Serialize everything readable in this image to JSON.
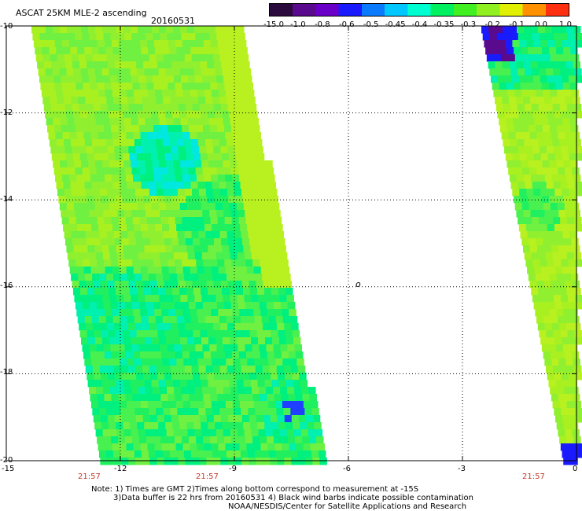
{
  "title": "ASCAT 25KM MLE-2 ascending",
  "date": "20160531",
  "colorbar": {
    "labels": [
      "-15.0",
      "-1.0",
      "-0.8",
      "-0.6",
      "-0.5",
      "-0.45",
      "-0.4",
      "-0.35",
      "-0.3",
      "-0.2",
      "-0.1",
      "0.0",
      "1.0"
    ],
    "colors": [
      "#2b0a3d",
      "#5a0a8c",
      "#6a00c8",
      "#1a1aff",
      "#0a7aff",
      "#00c8ff",
      "#00ffd0",
      "#00f060",
      "#40f020",
      "#90f020",
      "#e0f000",
      "#ff9000",
      "#ff3010"
    ]
  },
  "map": {
    "lat_labels": [
      "-10",
      "-12",
      "-14",
      "-16",
      "-18",
      "-20"
    ],
    "lon_labels": [
      "-15",
      "-12",
      "-9",
      "-6",
      "-3",
      "0"
    ],
    "lat_range": [
      -20,
      -10
    ],
    "lon_range": [
      -15,
      0
    ],
    "time_labels": [
      "21:57",
      "21:57",
      "21:57"
    ],
    "grid": true,
    "grid_style": "dotted",
    "island_label": "o"
  },
  "notes": {
    "line1": "Note: 1) Times are GMT 2)Times along bottom correspond to measurement at -15S",
    "line2": "3)Data buffer is 22 hrs from 20160531 4) Black wind barbs indicate possible contamination",
    "line3": "NOAA/NESDIS/Center for Satellite Applications and Research"
  }
}
